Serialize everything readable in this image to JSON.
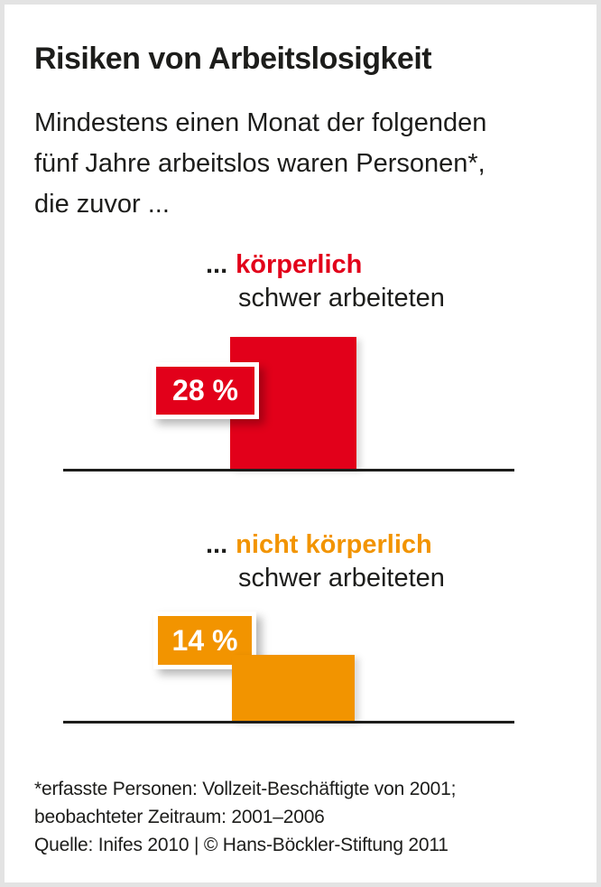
{
  "card": {
    "background": "#ffffff",
    "border_color": "#e3e3e3"
  },
  "header": {
    "title": "Risiken von Arbeitslosigkeit",
    "subtitle_lines": [
      "Mindestens einen Monat der folgenden",
      "fünf Jahre arbeitslos waren Personen*,",
      "die zuvor ..."
    ]
  },
  "chart_data": {
    "type": "bar",
    "title": "Risiken von Arbeitslosigkeit",
    "subtitle": "Mindestens einen Monat der folgenden fünf Jahre arbeitslos waren Personen*, die zuvor ...",
    "categories": [
      "... körperlich schwer arbeiteten",
      "... nicht körperlich schwer arbeiteten"
    ],
    "values": [
      28,
      14
    ],
    "unit": "%",
    "value_labels": [
      "28 %",
      "14 %"
    ],
    "colors": [
      "#e2001a",
      "#f29400"
    ],
    "orientation": "vertical",
    "baseline_color": "#1d1d1b",
    "text_color": "#1d1d1b",
    "grid": false,
    "legend": false
  },
  "sections": [
    {
      "ellipsis": "...",
      "keyword": "körperlich",
      "rest": "schwer arbeiteten",
      "value_label": "28 %",
      "color": "#e2001a"
    },
    {
      "ellipsis": "...",
      "keyword": "nicht körperlich",
      "rest": "schwer arbeiteten",
      "value_label": "14 %",
      "color": "#f29400"
    }
  ],
  "footer": {
    "lines": [
      "*erfasste Personen: Vollzeit-Beschäftigte von 2001;",
      "beobachteter Zeitraum: 2001–2006",
      "Quelle: Inifes 2010 | © Hans-Böckler-Stiftung 2011"
    ]
  }
}
